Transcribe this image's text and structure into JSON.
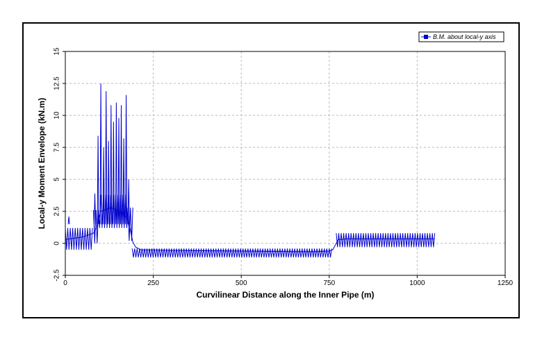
{
  "chart_data": {
    "type": "line",
    "title": "",
    "xlabel": "Curvilinear Distance along the Inner Pipe (m)",
    "ylabel": "Local-y Moment Envelope (kN.m)",
    "xlim": [
      0,
      1250
    ],
    "ylim": [
      -2.5,
      15
    ],
    "xticks": [
      "0",
      "250",
      "500",
      "750",
      "1000",
      "1250"
    ],
    "yticks": [
      "-2.5",
      "0",
      "2.5",
      "5",
      "7.5",
      "10",
      "12.5",
      "15"
    ],
    "grid": true,
    "legend_position": "top-right",
    "series": [
      {
        "name": "B.M. about local-y axis",
        "color": "#0000cc",
        "baseline": [
          [
            0,
            0.3
          ],
          [
            50,
            0.5
          ],
          [
            80,
            0.8
          ],
          [
            90,
            1.3
          ],
          [
            100,
            2.5
          ],
          [
            130,
            2.8
          ],
          [
            160,
            2.4
          ],
          [
            178,
            1.9
          ],
          [
            185,
            1.0
          ],
          [
            192,
            0.1
          ],
          [
            200,
            -0.3
          ],
          [
            215,
            -0.5
          ],
          [
            300,
            -0.55
          ],
          [
            500,
            -0.6
          ],
          [
            700,
            -0.65
          ],
          [
            750,
            -0.6
          ],
          [
            760,
            -0.5
          ],
          [
            768,
            -0.1
          ],
          [
            775,
            0.3
          ],
          [
            800,
            0.35
          ],
          [
            1000,
            0.35
          ],
          [
            1050,
            0.35
          ]
        ],
        "oscillation_segments": [
          {
            "x_start": 0,
            "x_end": 80,
            "spacing": 7,
            "peak": 1.2,
            "trough": -0.5
          },
          {
            "x_start": 190,
            "x_end": 760,
            "spacing": 7,
            "peak": -0.4,
            "trough": -1.1
          },
          {
            "x_start": 770,
            "x_end": 1050,
            "spacing": 7,
            "peak": 0.8,
            "trough": -0.3
          }
        ],
        "spikes": [
          {
            "x": 10,
            "y": 2.1
          },
          {
            "x": 84,
            "y": 3.9
          },
          {
            "x": 93,
            "y": 8.4
          },
          {
            "x": 101,
            "y": 12.5
          },
          {
            "x": 109,
            "y": 7.5
          },
          {
            "x": 116,
            "y": 11.9
          },
          {
            "x": 123,
            "y": 8.0
          },
          {
            "x": 130,
            "y": 10.8
          },
          {
            "x": 137,
            "y": 9.5
          },
          {
            "x": 145,
            "y": 11.0
          },
          {
            "x": 152,
            "y": 9.8
          },
          {
            "x": 159,
            "y": 10.8
          },
          {
            "x": 166,
            "y": 8.2
          },
          {
            "x": 173,
            "y": 11.6
          },
          {
            "x": 180,
            "y": 5.0
          }
        ]
      }
    ]
  }
}
